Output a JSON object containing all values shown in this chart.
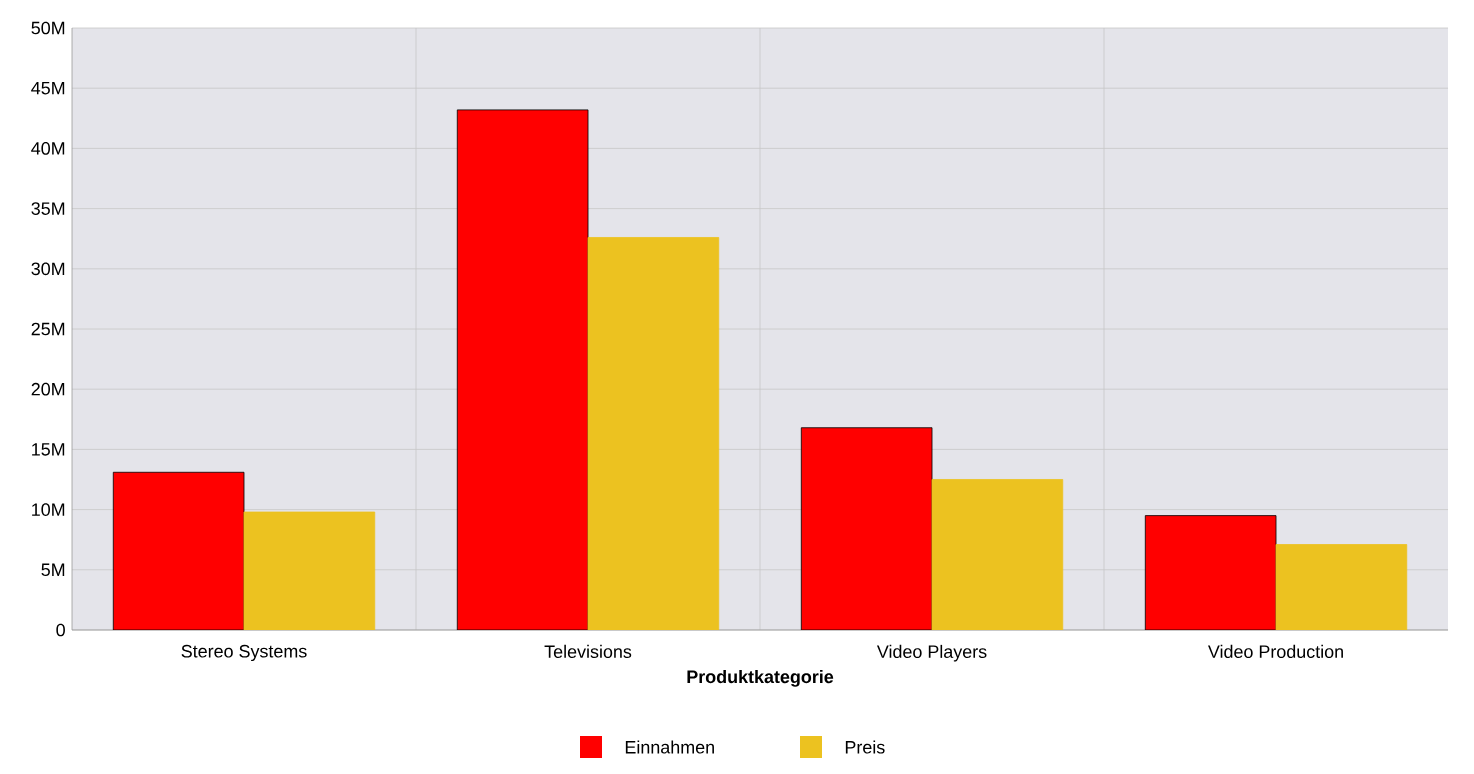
{
  "chart_data": {
    "type": "bar",
    "xlabel": "Produktkategorie",
    "categories": [
      "Stereo Systems",
      "Televisions",
      "Video Players",
      "Video Production"
    ],
    "series": [
      {
        "name": "Einnahmen",
        "color": "#ff0000",
        "values": [
          13.1,
          43.2,
          16.8,
          9.5
        ]
      },
      {
        "name": "Preis",
        "color": "#ecc220",
        "values": [
          9.8,
          32.6,
          12.5,
          7.1
        ]
      }
    ],
    "ylim": [
      0,
      50
    ],
    "yticks": [
      0,
      {
        "value": 5,
        "label": "5M"
      },
      {
        "value": 10,
        "label": "10M"
      },
      {
        "value": 15,
        "label": "15M"
      },
      {
        "value": 20,
        "label": "20M"
      },
      {
        "value": 25,
        "label": "25M"
      },
      {
        "value": 30,
        "label": "30M"
      },
      {
        "value": 35,
        "label": "35M"
      },
      {
        "value": 40,
        "label": "40M"
      },
      {
        "value": 45,
        "label": "45M"
      },
      {
        "value": 50,
        "label": "50M"
      }
    ],
    "grid": true,
    "legend": "bottom"
  }
}
